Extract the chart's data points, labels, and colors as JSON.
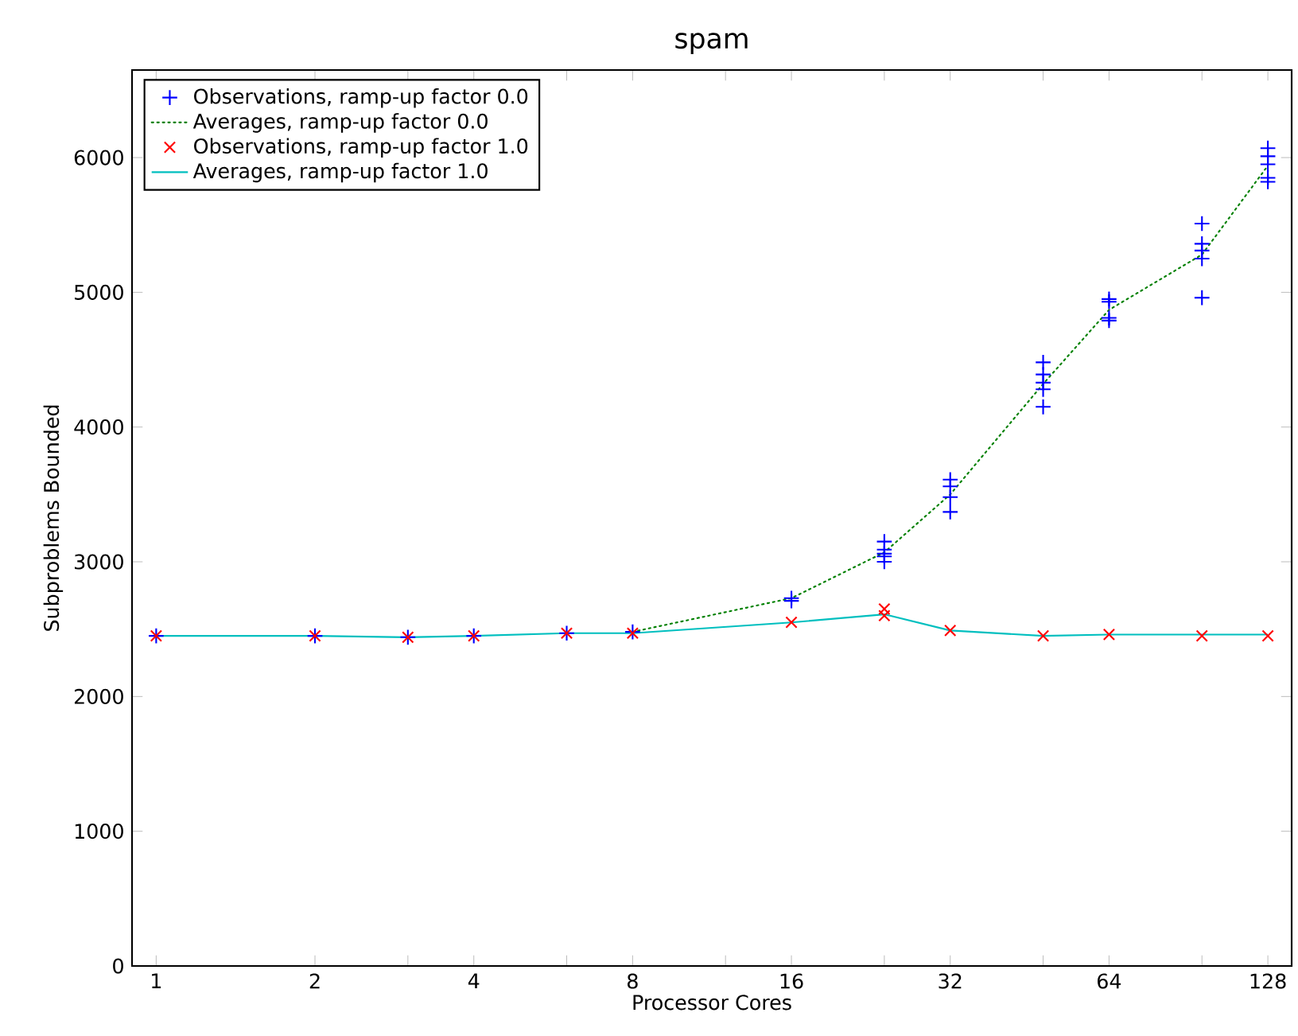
{
  "chart_data": {
    "type": "scatter",
    "title": "spam",
    "xlabel": "Processor Cores",
    "ylabel": "Subproblems Bounded",
    "log": "x",
    "xlim": [
      0.9,
      142
    ],
    "ylim": [
      0,
      6650
    ],
    "xticks": [
      1,
      2,
      {
        "value": 3,
        "label": null
      },
      4,
      {
        "value": 6,
        "label": null
      },
      8,
      {
        "value": 12,
        "label": null
      },
      16,
      {
        "value": 24,
        "label": null
      },
      32,
      {
        "value": 48,
        "label": null
      },
      64,
      {
        "value": 96,
        "label": null
      },
      128
    ],
    "yticks": [
      0,
      1000,
      2000,
      3000,
      4000,
      5000,
      6000
    ],
    "grid": false,
    "legend": "top left",
    "series": [
      {
        "name": "Observations, ramp-up factor 0.0",
        "type": "scatter",
        "marker": "plus",
        "color": "#0000ff",
        "x": [
          1,
          2,
          3,
          4,
          6,
          8,
          16,
          16,
          24,
          24,
          24,
          24,
          24,
          32,
          32,
          32,
          32,
          48,
          48,
          48,
          48,
          48,
          64,
          64,
          64,
          64,
          96,
          96,
          96,
          96,
          96,
          128,
          128,
          128,
          128,
          128
        ],
        "values": [
          2450,
          2450,
          2440,
          2450,
          2470,
          2480,
          2710,
          2730,
          3150,
          3090,
          3060,
          3040,
          3000,
          3610,
          3560,
          3480,
          3370,
          4480,
          4390,
          4330,
          4280,
          4150,
          4950,
          4930,
          4810,
          4790,
          5510,
          5360,
          5310,
          5250,
          4960,
          6070,
          6010,
          5950,
          5850,
          5820
        ]
      },
      {
        "name": "Averages, ramp-up factor 0.0",
        "type": "line",
        "marker": "none",
        "line_style": "dotted",
        "color": "#008000",
        "x": [
          8,
          16,
          24,
          32,
          48,
          64,
          96,
          128
        ],
        "values": [
          2480,
          2730,
          3070,
          3500,
          4320,
          4870,
          5280,
          5940
        ]
      },
      {
        "name": "Observations, ramp-up factor 1.0",
        "type": "scatter",
        "marker": "cross",
        "color": "#ff0000",
        "x": [
          1,
          2,
          3,
          4,
          6,
          8,
          16,
          24,
          24,
          32,
          48,
          64,
          96,
          128
        ],
        "values": [
          2450,
          2450,
          2440,
          2450,
          2470,
          2470,
          2550,
          2600,
          2650,
          2490,
          2450,
          2460,
          2450,
          2450
        ]
      },
      {
        "name": "Averages, ramp-up factor 1.0",
        "type": "line",
        "marker": "none",
        "line_style": "solid",
        "color": "#00bfbf",
        "x": [
          1,
          2,
          3,
          4,
          6,
          8,
          16,
          24,
          32,
          48,
          64,
          96,
          128
        ],
        "values": [
          2450,
          2450,
          2440,
          2450,
          2470,
          2470,
          2550,
          2610,
          2490,
          2450,
          2460,
          2460,
          2460
        ]
      }
    ]
  }
}
